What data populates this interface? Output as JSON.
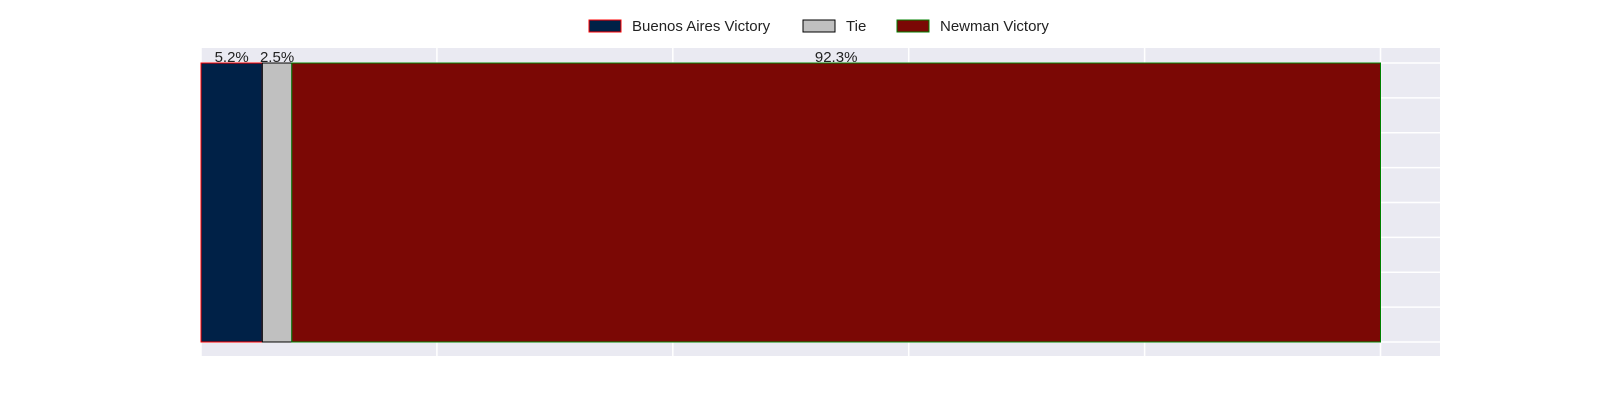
{
  "chart_data": {
    "type": "bar",
    "orientation": "horizontal",
    "stacked": true,
    "categories": [
      ""
    ],
    "series": [
      {
        "name": "Buenos Aires Victory",
        "values": [
          5.2
        ],
        "label": "5.2%",
        "color": "#002147",
        "edge": "#ff0000"
      },
      {
        "name": "Tie",
        "values": [
          2.5
        ],
        "label": "2.5%",
        "color": "#c0c0c0",
        "edge": "#000000"
      },
      {
        "name": "Newman Victory",
        "values": [
          92.3
        ],
        "label": "92.3%",
        "color": "#7b0805",
        "edge": "#008000"
      }
    ],
    "xlim": [
      0,
      105
    ],
    "grid": true,
    "legend_position": "top-center",
    "background": "#eaeaf2"
  }
}
